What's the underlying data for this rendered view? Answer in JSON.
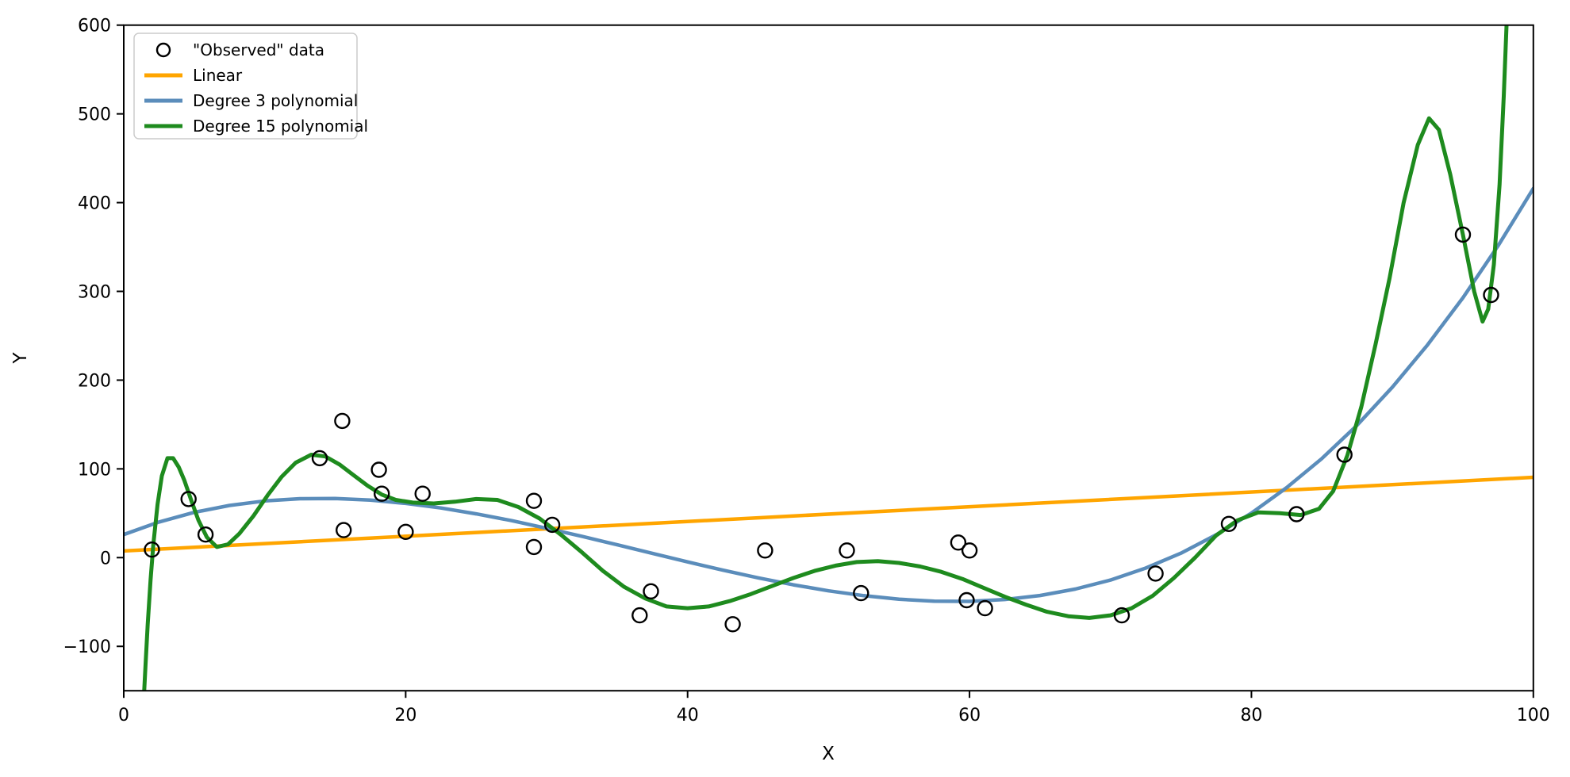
{
  "figure": {
    "background": "#FFFFFF"
  },
  "chart_data": {
    "type": "line+scatter",
    "title": "",
    "xlabel": "X",
    "ylabel": "Y",
    "xlim": [
      0,
      100
    ],
    "ylim": [
      -150,
      600
    ],
    "xticks": [
      0,
      20,
      40,
      60,
      80,
      100
    ],
    "yticks": [
      -100,
      0,
      100,
      200,
      300,
      400,
      500,
      600
    ],
    "grid": false,
    "axes_color": "#000000",
    "legend": {
      "position": "upper left",
      "border_color": "#CCCCCC",
      "background": "#FFFFFF",
      "items": [
        {
          "label": "\"Observed\" data",
          "marker": "circle",
          "color": "#000000"
        },
        {
          "label": "Linear",
          "marker": "line",
          "color": "#FFA500"
        },
        {
          "label": "Degree 3 polynomial",
          "marker": "line",
          "color": "#5B8DBB"
        },
        {
          "label": "Degree 15 polynomial",
          "marker": "line",
          "color": "#1E8B1E"
        }
      ]
    },
    "scatter": {
      "name": "\"Observed\" data",
      "color": "#000000",
      "marker_radius": 9,
      "points": [
        [
          2.0,
          9
        ],
        [
          4.6,
          66
        ],
        [
          5.8,
          26
        ],
        [
          13.9,
          112
        ],
        [
          15.5,
          154
        ],
        [
          15.6,
          31
        ],
        [
          18.1,
          99
        ],
        [
          18.3,
          72
        ],
        [
          20.0,
          29
        ],
        [
          21.2,
          72
        ],
        [
          29.1,
          64
        ],
        [
          29.1,
          12
        ],
        [
          30.4,
          37
        ],
        [
          36.6,
          -65
        ],
        [
          37.4,
          -38
        ],
        [
          43.2,
          -75
        ],
        [
          45.5,
          8
        ],
        [
          51.3,
          8
        ],
        [
          52.3,
          -40
        ],
        [
          59.2,
          17
        ],
        [
          59.8,
          -48
        ],
        [
          60.0,
          8
        ],
        [
          61.1,
          -57
        ],
        [
          70.8,
          -65
        ],
        [
          73.2,
          -18
        ],
        [
          78.4,
          38
        ],
        [
          83.2,
          49
        ],
        [
          86.6,
          116
        ],
        [
          95.0,
          364
        ],
        [
          97.0,
          296
        ]
      ]
    },
    "series": [
      {
        "name": "Linear",
        "color": "#FFA500",
        "width": 4.5,
        "points": [
          [
            0,
            7.5
          ],
          [
            100,
            90.5
          ]
        ]
      },
      {
        "name": "Degree 3 polynomial",
        "color": "#5B8DBB",
        "width": 4.5,
        "points": [
          [
            0,
            26
          ],
          [
            2.5,
            40.1
          ],
          [
            5,
            51
          ],
          [
            7.5,
            58.8
          ],
          [
            10,
            63.9
          ],
          [
            12.5,
            66.4
          ],
          [
            15,
            66.6
          ],
          [
            17.5,
            64.8
          ],
          [
            20,
            61.1
          ],
          [
            22.5,
            55.9
          ],
          [
            25,
            49.3
          ],
          [
            27.5,
            41.7
          ],
          [
            30,
            33.1
          ],
          [
            32.5,
            24
          ],
          [
            35,
            14.5
          ],
          [
            37.5,
            4.8
          ],
          [
            40,
            -4.8
          ],
          [
            42.5,
            -14.1
          ],
          [
            45,
            -22.8
          ],
          [
            47.5,
            -30.6
          ],
          [
            50,
            -37.4
          ],
          [
            52.5,
            -42.9
          ],
          [
            55,
            -46.9
          ],
          [
            57.5,
            -49.1
          ],
          [
            60,
            -49.3
          ],
          [
            62.5,
            -47.2
          ],
          [
            65,
            -42.7
          ],
          [
            67.5,
            -35.5
          ],
          [
            70,
            -25.3
          ],
          [
            72.5,
            -11.8
          ],
          [
            75,
            5
          ],
          [
            77.5,
            25.7
          ],
          [
            80,
            50.1
          ],
          [
            82.5,
            78.9
          ],
          [
            85,
            111.7
          ],
          [
            87.5,
            149.3
          ],
          [
            90,
            192.1
          ],
          [
            92.5,
            239.8
          ],
          [
            95,
            292.8
          ],
          [
            97.5,
            351.5
          ],
          [
            100,
            416
          ]
        ]
      },
      {
        "name": "Degree 15 polynomial",
        "color": "#1E8B1E",
        "width": 5,
        "points": [
          [
            1.42,
            -160
          ],
          [
            1.55,
            -120
          ],
          [
            1.7,
            -75
          ],
          [
            1.9,
            -25
          ],
          [
            2.1,
            15
          ],
          [
            2.4,
            60
          ],
          [
            2.7,
            92
          ],
          [
            3.1,
            112
          ],
          [
            3.5,
            112
          ],
          [
            3.9,
            102
          ],
          [
            4.3,
            87
          ],
          [
            4.8,
            64
          ],
          [
            5.3,
            42
          ],
          [
            5.9,
            23
          ],
          [
            6.6,
            12
          ],
          [
            7.4,
            15
          ],
          [
            8.2,
            27
          ],
          [
            9.2,
            47
          ],
          [
            10.2,
            70
          ],
          [
            11.2,
            91
          ],
          [
            12.2,
            107
          ],
          [
            13.3,
            116
          ],
          [
            14.3,
            114
          ],
          [
            15.3,
            105
          ],
          [
            16.3,
            93
          ],
          [
            17.3,
            81
          ],
          [
            18.3,
            71
          ],
          [
            19.3,
            65
          ],
          [
            20.5,
            62
          ],
          [
            22,
            61
          ],
          [
            23.5,
            63
          ],
          [
            25,
            66
          ],
          [
            26.5,
            65
          ],
          [
            28,
            57
          ],
          [
            29.5,
            44
          ],
          [
            31,
            26
          ],
          [
            32.5,
            6
          ],
          [
            34,
            -15
          ],
          [
            35.5,
            -33
          ],
          [
            37,
            -46
          ],
          [
            38.5,
            -55
          ],
          [
            40,
            -57
          ],
          [
            41.5,
            -55
          ],
          [
            43,
            -49
          ],
          [
            44.5,
            -41
          ],
          [
            46,
            -32
          ],
          [
            47.5,
            -23
          ],
          [
            49,
            -15
          ],
          [
            50.5,
            -9
          ],
          [
            52,
            -5
          ],
          [
            53.5,
            -4
          ],
          [
            55,
            -6
          ],
          [
            56.5,
            -10
          ],
          [
            58,
            -16
          ],
          [
            59.5,
            -24
          ],
          [
            61,
            -34
          ],
          [
            62.5,
            -44
          ],
          [
            64,
            -53
          ],
          [
            65.5,
            -61
          ],
          [
            67,
            -66
          ],
          [
            68.5,
            -68
          ],
          [
            70,
            -65
          ],
          [
            71.5,
            -57
          ],
          [
            73,
            -43
          ],
          [
            74.5,
            -23
          ],
          [
            76,
            0
          ],
          [
            77.5,
            25
          ],
          [
            79,
            42
          ],
          [
            80.5,
            51
          ],
          [
            82,
            50
          ],
          [
            83.5,
            48
          ],
          [
            84.8,
            55
          ],
          [
            85.8,
            75
          ],
          [
            86.8,
            115
          ],
          [
            87.8,
            170
          ],
          [
            88.8,
            240
          ],
          [
            89.8,
            315
          ],
          [
            90.8,
            400
          ],
          [
            91.8,
            465
          ],
          [
            92.6,
            495
          ],
          [
            93.3,
            482
          ],
          [
            94.1,
            432
          ],
          [
            95,
            364
          ],
          [
            95.8,
            300
          ],
          [
            96.4,
            266
          ],
          [
            96.8,
            280
          ],
          [
            97.2,
            330
          ],
          [
            97.6,
            420
          ],
          [
            97.9,
            520
          ],
          [
            98.15,
            620
          ]
        ]
      }
    ]
  }
}
